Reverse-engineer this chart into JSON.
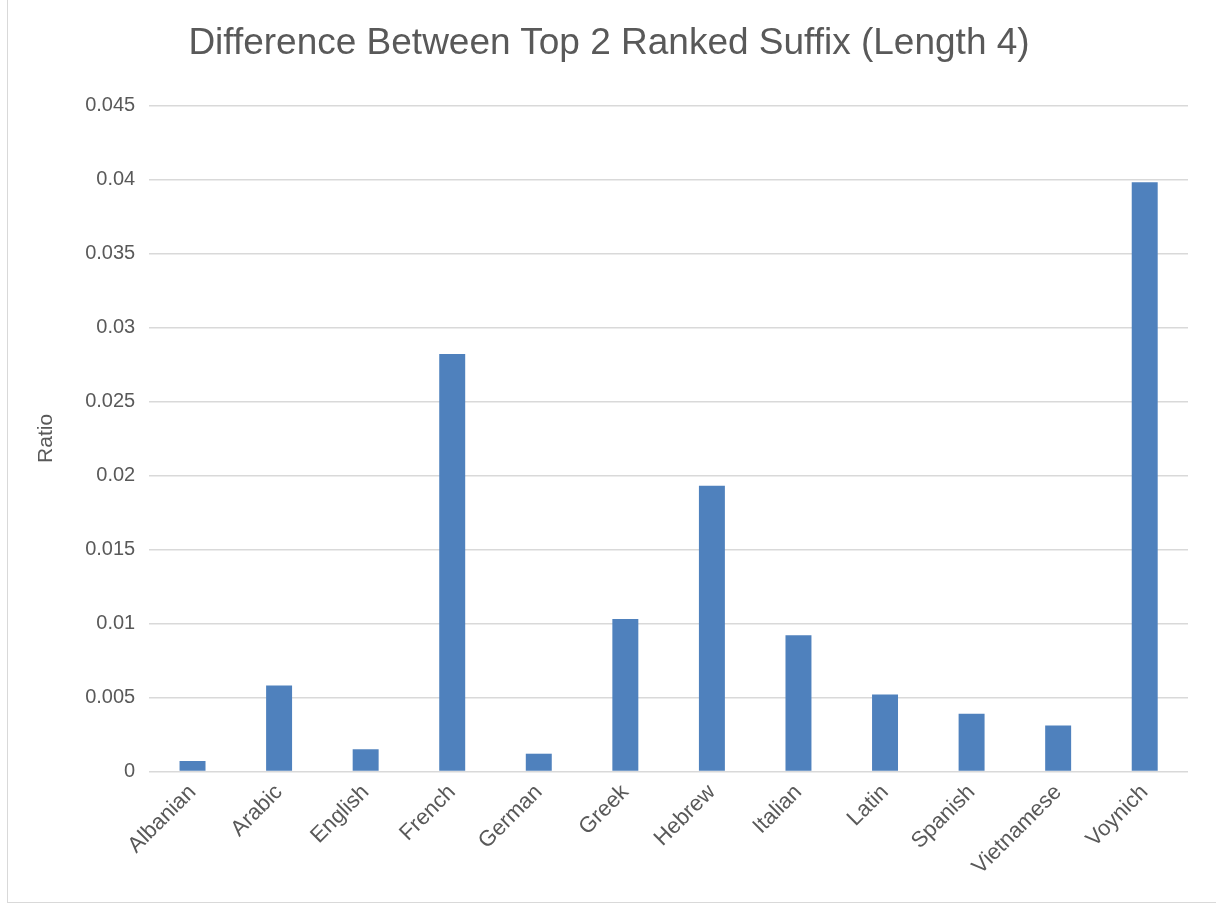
{
  "chart_data": {
    "type": "bar",
    "title": "Difference Between Top 2 Ranked Suffix (Length 4)",
    "ylabel": "Ratio",
    "categories": [
      "Albanian",
      "Arabic",
      "English",
      "French",
      "German",
      "Greek",
      "Hebrew",
      "Italian",
      "Latin",
      "Spanish",
      "Vietnamese",
      "Voynich"
    ],
    "values": [
      0.0007,
      0.0058,
      0.0015,
      0.0282,
      0.0012,
      0.0103,
      0.0193,
      0.0092,
      0.0052,
      0.0039,
      0.0031,
      0.0398
    ],
    "color": "#4f81bd",
    "ylim": [
      0,
      0.045
    ],
    "yticks": [
      0,
      0.005,
      0.01,
      0.015,
      0.02,
      0.025,
      0.03,
      0.035,
      0.04,
      0.045
    ],
    "grid": "y"
  }
}
